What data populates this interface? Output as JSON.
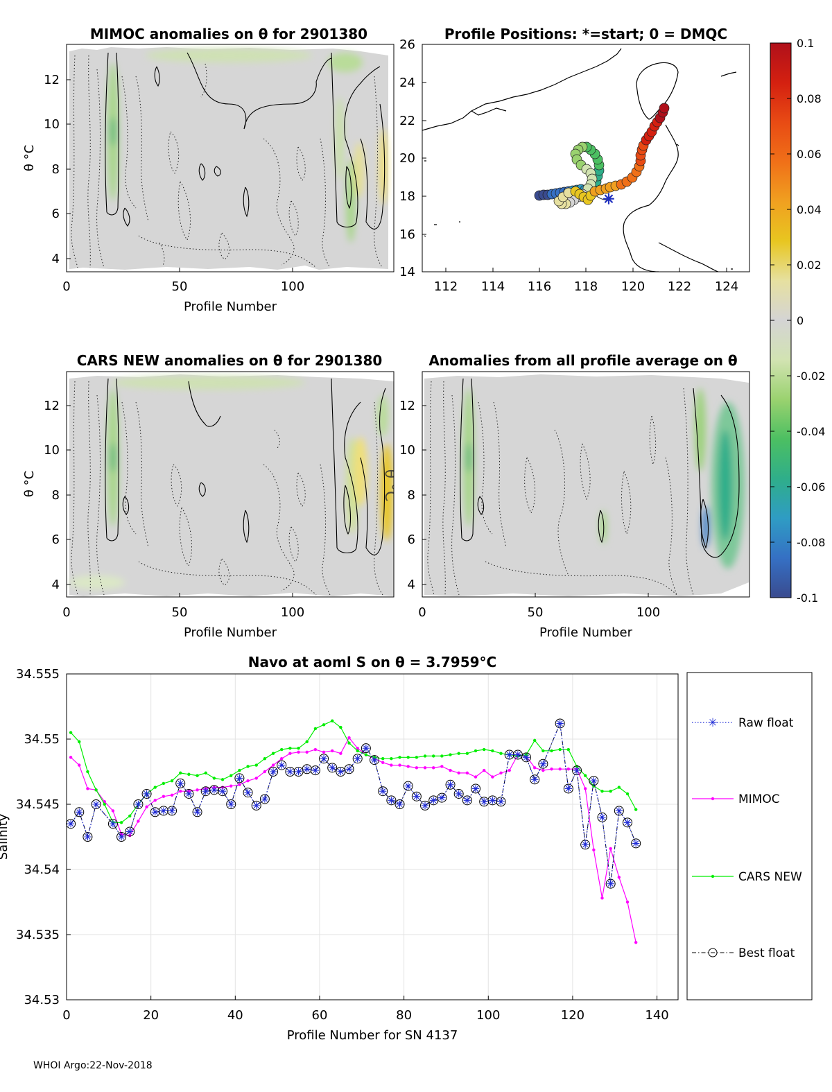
{
  "figure": {
    "footer": "WHOI Argo:22-Nov-2018",
    "colorbar": {
      "ticks": [
        "0.1",
        "0.08",
        "0.06",
        "0.04",
        "0.02",
        "0",
        "-0.02",
        "-0.04",
        "-0.06",
        "-0.08",
        "-0.1"
      ],
      "range": [
        -0.1,
        0.1
      ],
      "colors": [
        "#3a4b8f",
        "#3570c4",
        "#2f9cc4",
        "#2fae8a",
        "#4cbf62",
        "#9ad26f",
        "#d2e3b2",
        "#d4d4d4",
        "#e6e0a0",
        "#e8c620",
        "#f0a020",
        "#f07018",
        "#e84b14",
        "#d42010",
        "#b0101a"
      ]
    }
  },
  "panels": {
    "mimoc": {
      "title": "MIMOC anomalies on θ  for 2901380",
      "xlabel": "Profile Number",
      "ylabel": "θ °C",
      "xticks": [
        "0",
        "50",
        "100"
      ],
      "yticks": [
        "4",
        "6",
        "8",
        "10",
        "12"
      ]
    },
    "map": {
      "title": "Profile Positions: *=start; 0 = DMQC",
      "xticks": [
        "112",
        "114",
        "116",
        "118",
        "120",
        "122",
        "124"
      ],
      "yticks": [
        "14",
        "16",
        "18",
        "20",
        "22",
        "24",
        "26"
      ]
    },
    "cars": {
      "title": "CARS NEW anomalies on θ for 2901380",
      "xlabel": "Profile Number",
      "ylabel": "θ °C",
      "xticks": [
        "0",
        "50",
        "100"
      ],
      "yticks": [
        "4",
        "6",
        "8",
        "10",
        "12"
      ],
      "overlay_label": "θ °C"
    },
    "allavg": {
      "title": "Anomalies from all profile average on θ",
      "xlabel": "Profile Number",
      "xticks": [
        "0",
        "50",
        "100"
      ],
      "yticks": [
        "4",
        "6",
        "8",
        "10",
        "12"
      ]
    }
  },
  "chart_data": {
    "type": "line",
    "title": "Navo at aoml S on θ = 3.7959°C",
    "xlabel": "Profile Number for SN 4137",
    "ylabel": "Salinity",
    "xlim": [
      0,
      145
    ],
    "ylim": [
      34.53,
      34.555
    ],
    "xticks": [
      "0",
      "20",
      "40",
      "60",
      "80",
      "100",
      "120",
      "140"
    ],
    "yticks": [
      "34.53",
      "34.535",
      "34.54",
      "34.545",
      "34.55",
      "34.555"
    ],
    "grid": true,
    "legend_position": "right",
    "series": [
      {
        "name": "Raw float",
        "style": "dotted-star",
        "color": "#1f2bd6",
        "x": [
          1,
          3,
          5,
          7,
          11,
          13,
          15,
          17,
          19,
          21,
          23,
          25,
          27,
          29,
          31,
          33,
          35,
          37,
          39,
          41,
          43,
          45,
          47,
          49,
          51,
          53,
          55,
          57,
          59,
          61,
          63,
          65,
          67,
          69,
          71,
          73,
          75,
          77,
          79,
          81,
          83,
          85,
          87,
          89,
          91,
          93,
          95,
          97,
          99,
          101,
          103,
          105,
          107,
          109,
          111,
          113,
          117,
          119,
          121,
          123,
          125,
          127,
          129,
          131,
          133,
          135
        ],
        "values": [
          34.5435,
          34.5444,
          34.5425,
          34.545,
          34.5435,
          34.5425,
          34.5429,
          34.545,
          34.5458,
          34.5444,
          34.5445,
          34.5445,
          34.5466,
          34.5458,
          34.5444,
          34.546,
          34.5461,
          34.546,
          34.545,
          34.547,
          34.5459,
          34.5449,
          34.5454,
          34.5475,
          34.548,
          34.5475,
          34.5475,
          34.5477,
          34.5476,
          34.5485,
          34.5478,
          34.5475,
          34.5477,
          34.5485,
          34.5493,
          34.5484,
          34.546,
          34.5453,
          34.545,
          34.5464,
          34.5456,
          34.5449,
          34.5453,
          34.5455,
          34.5465,
          34.5458,
          34.5453,
          34.5462,
          34.5452,
          34.5453,
          34.5452,
          34.5488,
          34.5488,
          34.5486,
          34.5469,
          34.5481,
          34.5512,
          34.5462,
          34.5476,
          34.5419,
          34.5468,
          34.544,
          34.5389,
          34.5445,
          34.5436,
          34.542
        ]
      },
      {
        "name": "MIMOC",
        "style": "solid-dot",
        "color": "#ff00ff",
        "x": [
          1,
          3,
          5,
          7,
          9,
          11,
          13,
          15,
          17,
          19,
          21,
          23,
          25,
          27,
          29,
          31,
          33,
          35,
          37,
          39,
          41,
          43,
          45,
          47,
          49,
          51,
          53,
          55,
          57,
          59,
          61,
          63,
          65,
          67,
          69,
          71,
          73,
          75,
          77,
          79,
          81,
          83,
          85,
          87,
          89,
          91,
          93,
          95,
          97,
          99,
          101,
          103,
          105,
          107,
          109,
          111,
          113,
          115,
          117,
          119,
          121,
          123,
          125,
          127,
          129,
          131,
          133,
          135
        ],
        "values": [
          34.5486,
          34.548,
          34.5462,
          34.5461,
          34.5452,
          34.5445,
          34.5427,
          34.5426,
          34.5437,
          34.5448,
          34.5453,
          34.5456,
          34.5457,
          34.546,
          34.546,
          34.5461,
          34.5462,
          34.5463,
          34.5463,
          34.5464,
          34.5465,
          34.5468,
          34.547,
          34.5475,
          34.548,
          34.5485,
          34.5489,
          34.549,
          34.549,
          34.5492,
          34.549,
          34.5491,
          34.5489,
          34.5501,
          34.5493,
          34.5488,
          34.5485,
          34.5482,
          34.548,
          34.548,
          34.5479,
          34.5478,
          34.5478,
          34.5478,
          34.5479,
          34.5476,
          34.5474,
          34.5474,
          34.5471,
          34.5476,
          34.5471,
          34.5474,
          34.5476,
          34.5488,
          34.5487,
          34.5478,
          34.5476,
          34.5477,
          34.5477,
          34.5477,
          34.5477,
          34.5462,
          34.5415,
          34.5378,
          34.5416,
          34.5394,
          34.5375,
          34.5344
        ]
      },
      {
        "name": "CARS NEW",
        "style": "solid-dot",
        "color": "#00ee00",
        "x": [
          1,
          3,
          5,
          7,
          9,
          11,
          13,
          15,
          17,
          19,
          21,
          23,
          25,
          27,
          29,
          31,
          33,
          35,
          37,
          39,
          41,
          43,
          45,
          47,
          49,
          51,
          53,
          55,
          57,
          59,
          61,
          63,
          65,
          67,
          69,
          71,
          73,
          75,
          77,
          79,
          81,
          83,
          85,
          87,
          89,
          91,
          93,
          95,
          97,
          99,
          101,
          103,
          105,
          107,
          109,
          111,
          113,
          115,
          117,
          119,
          121,
          123,
          125,
          127,
          129,
          131,
          133,
          135
        ],
        "values": [
          34.5505,
          34.5498,
          34.5475,
          34.5461,
          34.545,
          34.5436,
          34.5436,
          34.5441,
          34.545,
          34.5458,
          34.5463,
          34.5466,
          34.5468,
          34.5474,
          34.5473,
          34.5472,
          34.5474,
          34.547,
          34.5469,
          34.5472,
          34.5476,
          34.5479,
          34.548,
          34.5485,
          34.5489,
          34.5492,
          34.5493,
          34.5493,
          34.5498,
          34.5508,
          34.5511,
          34.5514,
          34.5509,
          34.5497,
          34.5491,
          34.5488,
          34.5486,
          34.5485,
          34.5485,
          34.5486,
          34.5486,
          34.5486,
          34.5487,
          34.5487,
          34.5487,
          34.5488,
          34.5489,
          34.5489,
          34.5491,
          34.5492,
          34.5491,
          34.5489,
          34.5488,
          34.5487,
          34.5488,
          34.5499,
          34.5491,
          34.5491,
          34.5492,
          34.5492,
          34.5479,
          34.5472,
          34.5464,
          34.546,
          34.546,
          34.5463,
          34.5458,
          34.5446
        ]
      },
      {
        "name": "Best float",
        "style": "dashdot-circle",
        "color": "#000000",
        "x": [
          1,
          3,
          5,
          7,
          11,
          13,
          15,
          17,
          19,
          21,
          23,
          25,
          27,
          29,
          31,
          33,
          35,
          37,
          39,
          41,
          43,
          45,
          47,
          49,
          51,
          53,
          55,
          57,
          59,
          61,
          63,
          65,
          67,
          69,
          71,
          73,
          75,
          77,
          79,
          81,
          83,
          85,
          87,
          89,
          91,
          93,
          95,
          97,
          99,
          101,
          103,
          105,
          107,
          109,
          111,
          113,
          117,
          119,
          121,
          123,
          125,
          127,
          129,
          131,
          133,
          135
        ],
        "values": [
          34.5435,
          34.5444,
          34.5425,
          34.545,
          34.5435,
          34.5425,
          34.5429,
          34.545,
          34.5458,
          34.5444,
          34.5445,
          34.5445,
          34.5466,
          34.5458,
          34.5444,
          34.546,
          34.5461,
          34.546,
          34.545,
          34.547,
          34.5459,
          34.5449,
          34.5454,
          34.5475,
          34.548,
          34.5475,
          34.5475,
          34.5477,
          34.5476,
          34.5485,
          34.5478,
          34.5475,
          34.5477,
          34.5485,
          34.5493,
          34.5484,
          34.546,
          34.5453,
          34.545,
          34.5464,
          34.5456,
          34.5449,
          34.5453,
          34.5455,
          34.5465,
          34.5458,
          34.5453,
          34.5462,
          34.5452,
          34.5453,
          34.5452,
          34.5488,
          34.5488,
          34.5486,
          34.5469,
          34.5481,
          34.5512,
          34.5462,
          34.5476,
          34.5419,
          34.5468,
          34.544,
          34.5389,
          34.5445,
          34.5436,
          34.542
        ]
      }
    ]
  }
}
